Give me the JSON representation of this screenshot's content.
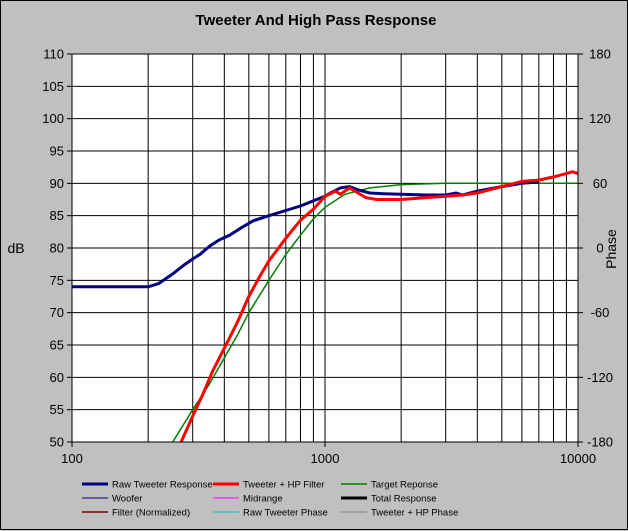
{
  "chart_data": {
    "type": "line",
    "title": "Tweeter  And High Pass Response",
    "xlabel": "",
    "ylabel": "dB",
    "y2label": "Phase",
    "xscale": "log",
    "xlim": [
      100,
      10000
    ],
    "ylim": [
      50,
      110
    ],
    "y2lim": [
      -180,
      180
    ],
    "x_ticks": [
      100,
      1000,
      10000
    ],
    "x_tick_labels": [
      "100",
      "1000",
      "10000"
    ],
    "y_ticks": [
      50,
      55,
      60,
      65,
      70,
      75,
      80,
      85,
      90,
      95,
      100,
      105,
      110
    ],
    "y_tick_labels": [
      "50",
      "55",
      "60",
      "65",
      "70",
      "75",
      "80",
      "85",
      "90",
      "95",
      "100",
      "105",
      "110"
    ],
    "y2_ticks": [
      -180,
      -120,
      -60,
      0,
      60,
      120,
      180
    ],
    "y2_tick_labels": [
      "-180",
      "-120",
      "-60",
      "0",
      "60",
      "120",
      "180"
    ],
    "grid": true,
    "legend_position": "bottom",
    "series": [
      {
        "name": "Raw Tweeter Response",
        "color": "#000080",
        "width": 3,
        "points": [
          [
            100,
            74
          ],
          [
            150,
            74
          ],
          [
            200,
            74
          ],
          [
            220,
            74.5
          ],
          [
            250,
            76
          ],
          [
            280,
            77.5
          ],
          [
            300,
            78.3
          ],
          [
            320,
            79
          ],
          [
            350,
            80.3
          ],
          [
            380,
            81.2
          ],
          [
            420,
            82
          ],
          [
            470,
            83.2
          ],
          [
            520,
            84.2
          ],
          [
            600,
            85
          ],
          [
            700,
            85.8
          ],
          [
            800,
            86.5
          ],
          [
            900,
            87.3
          ],
          [
            1000,
            88
          ],
          [
            1050,
            88.5
          ],
          [
            1150,
            89.3
          ],
          [
            1250,
            89.5
          ],
          [
            1350,
            89
          ],
          [
            1500,
            88.5
          ],
          [
            1700,
            88.4
          ],
          [
            2000,
            88.3
          ],
          [
            2500,
            88.2
          ],
          [
            3000,
            88.2
          ],
          [
            3300,
            88.5
          ],
          [
            3500,
            88.2
          ],
          [
            4000,
            88.8
          ],
          [
            5000,
            89.5
          ],
          [
            6000,
            90
          ],
          [
            7000,
            90.2
          ]
        ]
      },
      {
        "name": "Tweeter + HP Filter",
        "color": "#ff0000",
        "width": 3,
        "points": [
          [
            270,
            50
          ],
          [
            300,
            54
          ],
          [
            330,
            57.5
          ],
          [
            360,
            61
          ],
          [
            400,
            64.5
          ],
          [
            450,
            68.5
          ],
          [
            500,
            72.5
          ],
          [
            550,
            75.5
          ],
          [
            600,
            78
          ],
          [
            700,
            81.5
          ],
          [
            800,
            84.3
          ],
          [
            900,
            86
          ],
          [
            1000,
            88
          ],
          [
            1100,
            88.8
          ],
          [
            1150,
            88.3
          ],
          [
            1250,
            89.3
          ],
          [
            1350,
            88.5
          ],
          [
            1450,
            87.8
          ],
          [
            1600,
            87.5
          ],
          [
            1800,
            87.5
          ],
          [
            2000,
            87.5
          ],
          [
            2500,
            87.8
          ],
          [
            3000,
            88
          ],
          [
            3500,
            88.2
          ],
          [
            4000,
            88.5
          ],
          [
            5000,
            89.5
          ],
          [
            6000,
            90.3
          ],
          [
            7000,
            90.5
          ],
          [
            8000,
            91
          ],
          [
            9000,
            91.5
          ],
          [
            9500,
            91.8
          ],
          [
            10000,
            91.5
          ]
        ]
      },
      {
        "name": "Target Reponse",
        "color": "#008000",
        "width": 1.5,
        "points": [
          [
            250,
            50
          ],
          [
            300,
            55
          ],
          [
            350,
            59
          ],
          [
            400,
            63
          ],
          [
            450,
            66.5
          ],
          [
            500,
            70
          ],
          [
            600,
            75
          ],
          [
            700,
            79
          ],
          [
            800,
            82
          ],
          [
            900,
            84.5
          ],
          [
            1000,
            86.3
          ],
          [
            1200,
            88.3
          ],
          [
            1500,
            89.3
          ],
          [
            2000,
            89.8
          ],
          [
            3000,
            90
          ],
          [
            5000,
            90
          ],
          [
            10000,
            90
          ]
        ]
      },
      {
        "name": "Woofer",
        "color": "#000080",
        "width": 1,
        "points": []
      },
      {
        "name": "Midrange",
        "color": "#ff00ff",
        "width": 1,
        "points": []
      },
      {
        "name": "Total Response",
        "color": "#000000",
        "width": 3,
        "points": []
      },
      {
        "name": "Filter (Normalized)",
        "color": "#800000",
        "width": 1.5,
        "points": []
      },
      {
        "name": "Raw Tweeter Phase",
        "color": "#00c0c0",
        "width": 1,
        "points": []
      },
      {
        "name": "Tweeter + HP Phase",
        "color": "#808080",
        "width": 1,
        "points": []
      }
    ]
  }
}
